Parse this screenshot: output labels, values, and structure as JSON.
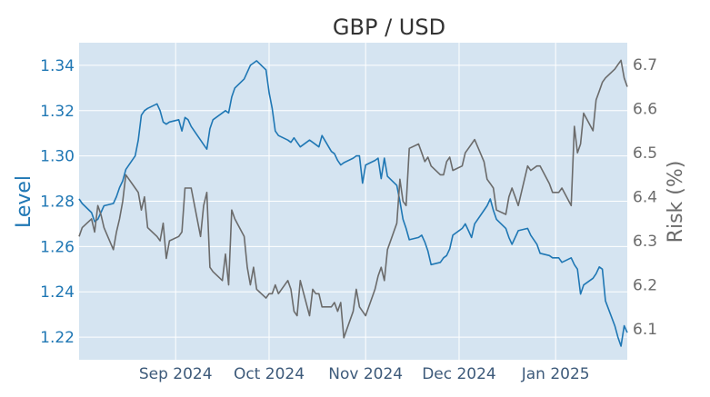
{
  "chart_data": {
    "type": "line",
    "title": "GBP / USD",
    "xlabel": "",
    "ylabel": "Level",
    "y2label": "Risk (%)",
    "x_range": [
      "2024-08-01",
      "2025-01-24"
    ],
    "ylim": [
      1.21,
      1.35
    ],
    "y2lim": [
      6.03,
      6.75
    ],
    "x_ticks": [
      {
        "date": "2024-09-01",
        "label": "Sep 2024"
      },
      {
        "date": "2024-10-01",
        "label": "Oct 2024"
      },
      {
        "date": "2024-11-01",
        "label": "Nov 2024"
      },
      {
        "date": "2024-12-01",
        "label": "Dec 2024"
      },
      {
        "date": "2025-01-01",
        "label": "Jan 2025"
      }
    ],
    "y_ticks": [
      "1.22",
      "1.24",
      "1.26",
      "1.28",
      "1.30",
      "1.32",
      "1.34"
    ],
    "y2_ticks": [
      "6.1",
      "6.2",
      "6.3",
      "6.4",
      "6.5",
      "6.6",
      "6.7"
    ],
    "grid": true,
    "colors": {
      "level": "#1f77b4",
      "risk": "#6b6b6b",
      "plot_bg": "#d5e4f1",
      "grid": "#ffffff",
      "axis_text": "#3d5a7a",
      "title": "#333333"
    },
    "series": [
      {
        "axis": "left",
        "x": [
          "2024-08-01",
          "2024-08-02",
          "2024-08-05",
          "2024-08-06",
          "2024-08-07",
          "2024-08-08",
          "2024-08-09",
          "2024-08-12",
          "2024-08-13",
          "2024-08-14",
          "2024-08-15",
          "2024-08-16",
          "2024-08-19",
          "2024-08-20",
          "2024-08-21",
          "2024-08-22",
          "2024-08-23",
          "2024-08-26",
          "2024-08-27",
          "2024-08-28",
          "2024-08-29",
          "2024-08-30",
          "2024-09-02",
          "2024-09-03",
          "2024-09-04",
          "2024-09-05",
          "2024-09-06",
          "2024-09-09",
          "2024-09-10",
          "2024-09-11",
          "2024-09-12",
          "2024-09-13",
          "2024-09-16",
          "2024-09-17",
          "2024-09-18",
          "2024-09-19",
          "2024-09-20",
          "2024-09-23",
          "2024-09-24",
          "2024-09-25",
          "2024-09-26",
          "2024-09-27",
          "2024-09-30",
          "2024-10-01",
          "2024-10-02",
          "2024-10-03",
          "2024-10-04",
          "2024-10-07",
          "2024-10-08",
          "2024-10-09",
          "2024-10-10",
          "2024-10-11",
          "2024-10-14",
          "2024-10-15",
          "2024-10-16",
          "2024-10-17",
          "2024-10-18",
          "2024-10-21",
          "2024-10-22",
          "2024-10-23",
          "2024-10-24",
          "2024-10-25",
          "2024-10-28",
          "2024-10-29",
          "2024-10-30",
          "2024-10-31",
          "2024-11-01",
          "2024-11-04",
          "2024-11-05",
          "2024-11-06",
          "2024-11-07",
          "2024-11-08",
          "2024-11-11",
          "2024-11-12",
          "2024-11-13",
          "2024-11-14",
          "2024-11-15",
          "2024-11-18",
          "2024-11-19",
          "2024-11-20",
          "2024-11-21",
          "2024-11-22",
          "2024-11-25",
          "2024-11-26",
          "2024-11-27",
          "2024-11-28",
          "2024-11-29",
          "2024-12-02",
          "2024-12-03",
          "2024-12-04",
          "2024-12-05",
          "2024-12-06",
          "2024-12-09",
          "2024-12-10",
          "2024-12-11",
          "2024-12-12",
          "2024-12-13",
          "2024-12-16",
          "2024-12-17",
          "2024-12-18",
          "2024-12-19",
          "2024-12-20",
          "2024-12-23",
          "2024-12-24",
          "2024-12-26",
          "2024-12-27",
          "2024-12-30",
          "2024-12-31",
          "2025-01-02",
          "2025-01-03",
          "2025-01-06",
          "2025-01-07",
          "2025-01-08",
          "2025-01-09",
          "2025-01-10",
          "2025-01-13",
          "2025-01-14",
          "2025-01-15",
          "2025-01-16",
          "2025-01-17",
          "2025-01-20",
          "2025-01-21",
          "2025-01-22",
          "2025-01-23",
          "2025-01-24"
        ],
        "values": [
          1.281,
          1.279,
          1.275,
          1.271,
          1.272,
          1.275,
          1.278,
          1.279,
          1.282,
          1.286,
          1.289,
          1.294,
          1.3,
          1.307,
          1.318,
          1.32,
          1.321,
          1.323,
          1.32,
          1.315,
          1.314,
          1.315,
          1.316,
          1.311,
          1.317,
          1.316,
          1.313,
          1.307,
          1.305,
          1.303,
          1.312,
          1.316,
          1.319,
          1.32,
          1.319,
          1.326,
          1.33,
          1.334,
          1.337,
          1.34,
          1.341,
          1.342,
          1.338,
          1.328,
          1.321,
          1.311,
          1.309,
          1.307,
          1.306,
          1.308,
          1.306,
          1.304,
          1.307,
          1.306,
          1.305,
          1.304,
          1.309,
          1.302,
          1.301,
          1.298,
          1.296,
          1.297,
          1.299,
          1.3,
          1.3,
          1.288,
          1.296,
          1.298,
          1.299,
          1.29,
          1.299,
          1.291,
          1.287,
          1.28,
          1.272,
          1.268,
          1.263,
          1.264,
          1.265,
          1.262,
          1.258,
          1.252,
          1.253,
          1.255,
          1.256,
          1.259,
          1.265,
          1.268,
          1.27,
          1.267,
          1.264,
          1.27,
          1.276,
          1.278,
          1.281,
          1.276,
          1.272,
          1.268,
          1.264,
          1.261,
          1.264,
          1.267,
          1.268,
          1.265,
          1.261,
          1.257,
          1.256,
          1.255,
          1.255,
          1.253,
          1.255,
          1.252,
          1.25,
          1.239,
          1.243,
          1.246,
          1.248,
          1.251,
          1.25,
          1.236,
          1.225,
          1.22,
          1.216,
          1.225,
          1.222
        ],
        "color": "#1f77b4"
      },
      {
        "axis": "right",
        "x": [
          "2024-08-01",
          "2024-08-02",
          "2024-08-05",
          "2024-08-06",
          "2024-08-07",
          "2024-08-08",
          "2024-08-09",
          "2024-08-12",
          "2024-08-13",
          "2024-08-14",
          "2024-08-15",
          "2024-08-16",
          "2024-08-19",
          "2024-08-20",
          "2024-08-21",
          "2024-08-22",
          "2024-08-23",
          "2024-08-26",
          "2024-08-27",
          "2024-08-28",
          "2024-08-29",
          "2024-08-30",
          "2024-09-02",
          "2024-09-03",
          "2024-09-04",
          "2024-09-05",
          "2024-09-06",
          "2024-09-09",
          "2024-09-10",
          "2024-09-11",
          "2024-09-12",
          "2024-09-13",
          "2024-09-16",
          "2024-09-17",
          "2024-09-18",
          "2024-09-19",
          "2024-09-20",
          "2024-09-23",
          "2024-09-24",
          "2024-09-25",
          "2024-09-26",
          "2024-09-27",
          "2024-09-30",
          "2024-10-01",
          "2024-10-02",
          "2024-10-03",
          "2024-10-04",
          "2024-10-07",
          "2024-10-08",
          "2024-10-09",
          "2024-10-10",
          "2024-10-11",
          "2024-10-14",
          "2024-10-15",
          "2024-10-16",
          "2024-10-17",
          "2024-10-18",
          "2024-10-21",
          "2024-10-22",
          "2024-10-23",
          "2024-10-24",
          "2024-10-25",
          "2024-10-28",
          "2024-10-29",
          "2024-10-30",
          "2024-10-31",
          "2024-11-01",
          "2024-11-04",
          "2024-11-05",
          "2024-11-06",
          "2024-11-07",
          "2024-11-08",
          "2024-11-11",
          "2024-11-12",
          "2024-11-13",
          "2024-11-14",
          "2024-11-15",
          "2024-11-18",
          "2024-11-19",
          "2024-11-20",
          "2024-11-21",
          "2024-11-22",
          "2024-11-25",
          "2024-11-26",
          "2024-11-27",
          "2024-11-28",
          "2024-11-29",
          "2024-12-02",
          "2024-12-03",
          "2024-12-04",
          "2024-12-05",
          "2024-12-06",
          "2024-12-09",
          "2024-12-10",
          "2024-12-11",
          "2024-12-12",
          "2024-12-13",
          "2024-12-16",
          "2024-12-17",
          "2024-12-18",
          "2024-12-19",
          "2024-12-20",
          "2024-12-23",
          "2024-12-24",
          "2024-12-26",
          "2024-12-27",
          "2024-12-30",
          "2024-12-31",
          "2025-01-02",
          "2025-01-03",
          "2025-01-06",
          "2025-01-07",
          "2025-01-08",
          "2025-01-09",
          "2025-01-10",
          "2025-01-13",
          "2025-01-14",
          "2025-01-15",
          "2025-01-16",
          "2025-01-17",
          "2025-01-20",
          "2025-01-21",
          "2025-01-22",
          "2025-01-23",
          "2025-01-24"
        ],
        "values": [
          6.31,
          6.33,
          6.35,
          6.32,
          6.38,
          6.36,
          6.33,
          6.28,
          6.32,
          6.35,
          6.39,
          6.45,
          6.42,
          6.41,
          6.37,
          6.4,
          6.33,
          6.31,
          6.3,
          6.34,
          6.26,
          6.3,
          6.31,
          6.32,
          6.42,
          6.42,
          6.42,
          6.31,
          6.38,
          6.41,
          6.24,
          6.23,
          6.21,
          6.27,
          6.2,
          6.37,
          6.35,
          6.31,
          6.24,
          6.2,
          6.24,
          6.19,
          6.17,
          6.18,
          6.18,
          6.2,
          6.18,
          6.21,
          6.19,
          6.14,
          6.13,
          6.21,
          6.13,
          6.19,
          6.18,
          6.18,
          6.15,
          6.15,
          6.16,
          6.14,
          6.16,
          6.08,
          6.14,
          6.19,
          6.15,
          6.14,
          6.13,
          6.19,
          6.22,
          6.24,
          6.21,
          6.28,
          6.34,
          6.44,
          6.39,
          6.38,
          6.51,
          6.52,
          6.5,
          6.48,
          6.49,
          6.47,
          6.45,
          6.45,
          6.48,
          6.49,
          6.46,
          6.47,
          6.5,
          6.51,
          6.52,
          6.53,
          6.48,
          6.44,
          6.43,
          6.42,
          6.37,
          6.36,
          6.4,
          6.42,
          6.4,
          6.38,
          6.47,
          6.46,
          6.47,
          6.47,
          6.43,
          6.41,
          6.41,
          6.42,
          6.38,
          6.56,
          6.5,
          6.52,
          6.59,
          6.55,
          6.62,
          6.64,
          6.66,
          6.67,
          6.69,
          6.7,
          6.71,
          6.67,
          6.65
        ],
        "color": "#6b6b6b"
      }
    ]
  }
}
